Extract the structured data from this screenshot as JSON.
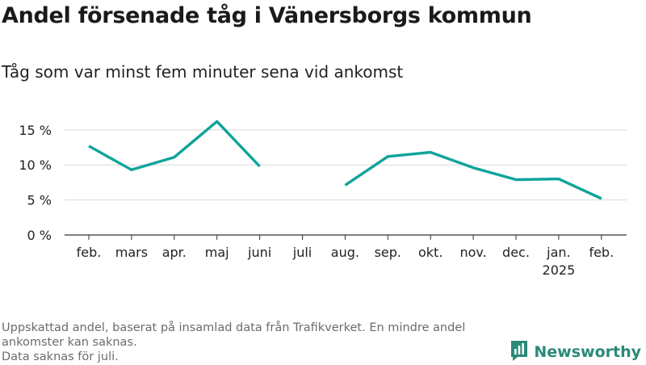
{
  "header": {
    "title": "Andel försenade tåg i Vänersborgs kommun",
    "subtitle": "Tåg som var minst fem minuter sena vid ankomst"
  },
  "footer": {
    "lines": [
      "Uppskattad andel, baserat på insamlad data från Trafikverket. En mindre andel",
      "ankomster kan saknas.",
      "Data saknas för juli."
    ]
  },
  "brand": {
    "name": "Newsworthy"
  },
  "colors": {
    "line": "#0fa39a",
    "grid": "#d9d9d9",
    "axis": "#333333",
    "text": "#222222",
    "brand": "#2a8a78"
  },
  "chart_data": {
    "type": "line",
    "categories": [
      [
        "feb."
      ],
      [
        "mars"
      ],
      [
        "apr."
      ],
      [
        "maj"
      ],
      [
        "juni"
      ],
      [
        "juli"
      ],
      [
        "aug."
      ],
      [
        "sep."
      ],
      [
        "okt."
      ],
      [
        "nov."
      ],
      [
        "dec."
      ],
      [
        "jan.",
        "2025"
      ],
      [
        "feb."
      ]
    ],
    "series": [
      {
        "values": [
          12.7,
          9.3,
          11.1,
          16.2,
          9.8,
          null,
          7.1,
          11.2,
          11.8,
          9.6,
          7.9,
          8.0,
          5.2
        ]
      }
    ],
    "y_ticks": [
      0,
      5,
      10,
      15
    ],
    "y_tick_format": "{v} %",
    "ylim": [
      0,
      17
    ],
    "grid": true,
    "legend": "none"
  }
}
